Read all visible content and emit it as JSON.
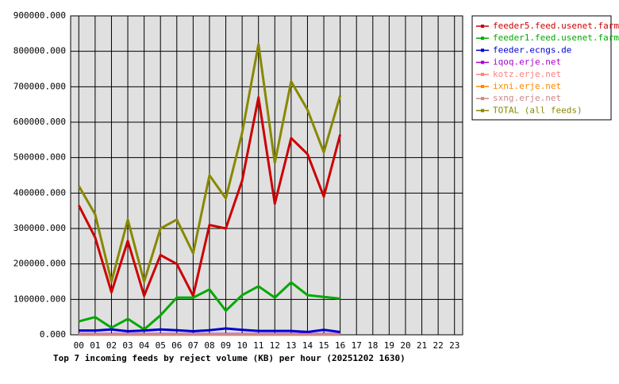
{
  "chart_data": {
    "type": "line",
    "title": "Top 7 incoming feeds by reject volume (KB) per hour (20251202 1630)",
    "categories": [
      "00",
      "01",
      "02",
      "03",
      "04",
      "05",
      "06",
      "07",
      "08",
      "09",
      "10",
      "11",
      "12",
      "13",
      "14",
      "15",
      "16",
      "17",
      "18",
      "19",
      "20",
      "21",
      "22",
      "23"
    ],
    "ylim": [
      0,
      900000
    ],
    "yticks": [
      {
        "value": 0,
        "label": "0.000"
      },
      {
        "value": 100000,
        "label": "100000.000"
      },
      {
        "value": 200000,
        "label": "200000.000"
      },
      {
        "value": 300000,
        "label": "300000.000"
      },
      {
        "value": 400000,
        "label": "400000.000"
      },
      {
        "value": 500000,
        "label": "500000.000"
      },
      {
        "value": 600000,
        "label": "600000.000"
      },
      {
        "value": 700000,
        "label": "700000.000"
      },
      {
        "value": 800000,
        "label": "800000.000"
      },
      {
        "value": 900000,
        "label": "900000.000"
      }
    ],
    "grid": true,
    "legend": "right",
    "series": [
      {
        "name": "feeder5.feed.usenet.farm",
        "color": "#cc0000",
        "values": [
          365000,
          275000,
          120000,
          265000,
          110000,
          225000,
          200000,
          110000,
          310000,
          300000,
          435000,
          670000,
          370000,
          555000,
          510000,
          390000,
          565000,
          null,
          null,
          null,
          null,
          null,
          null,
          null
        ]
      },
      {
        "name": "feeder1.feed.usenet.farm",
        "color": "#00aa00",
        "values": [
          38000,
          50000,
          20000,
          45000,
          15000,
          55000,
          105000,
          105000,
          128000,
          68000,
          112000,
          137000,
          105000,
          148000,
          112000,
          107000,
          102000,
          null,
          null,
          null,
          null,
          null,
          null,
          null
        ]
      },
      {
        "name": "feeder.ecngs.de",
        "color": "#0000cc",
        "values": [
          12000,
          12000,
          15000,
          10000,
          12000,
          15000,
          13000,
          10000,
          13000,
          18000,
          14000,
          11000,
          11000,
          11000,
          8000,
          14000,
          8000,
          null,
          null,
          null,
          null,
          null,
          null,
          null
        ]
      },
      {
        "name": "iqoq.erje.net",
        "color": "#aa00cc",
        "values": [
          2000,
          2000,
          2000,
          2000,
          2000,
          2000,
          2000,
          2000,
          2000,
          2000,
          2000,
          2000,
          2000,
          2000,
          2000,
          2000,
          2000,
          null,
          null,
          null,
          null,
          null,
          null,
          null
        ]
      },
      {
        "name": "kotz.erje.net",
        "color": "#ff8080",
        "values": [
          1000,
          1000,
          1000,
          1000,
          1000,
          1000,
          1000,
          1000,
          1000,
          1000,
          1000,
          1000,
          1000,
          1000,
          1000,
          1000,
          1000,
          null,
          null,
          null,
          null,
          null,
          null,
          null
        ]
      },
      {
        "name": "ixni.erje.net",
        "color": "#ff8800",
        "values": [
          500,
          500,
          500,
          500,
          500,
          500,
          500,
          500,
          500,
          500,
          500,
          500,
          500,
          500,
          500,
          500,
          500,
          null,
          null,
          null,
          null,
          null,
          null,
          null
        ]
      },
      {
        "name": "sxng.erje.net",
        "color": "#cc8888",
        "values": [
          500,
          500,
          500,
          500,
          500,
          500,
          500,
          500,
          500,
          500,
          500,
          500,
          500,
          500,
          500,
          500,
          500,
          null,
          null,
          null,
          null,
          null,
          null,
          null
        ]
      },
      {
        "name": "TOTAL (all feeds)",
        "color": "#888800",
        "values": [
          420000,
          340000,
          150000,
          325000,
          150000,
          300000,
          325000,
          230000,
          450000,
          385000,
          570000,
          820000,
          485000,
          715000,
          635000,
          515000,
          675000,
          null,
          null,
          null,
          null,
          null,
          null,
          null
        ]
      }
    ]
  }
}
